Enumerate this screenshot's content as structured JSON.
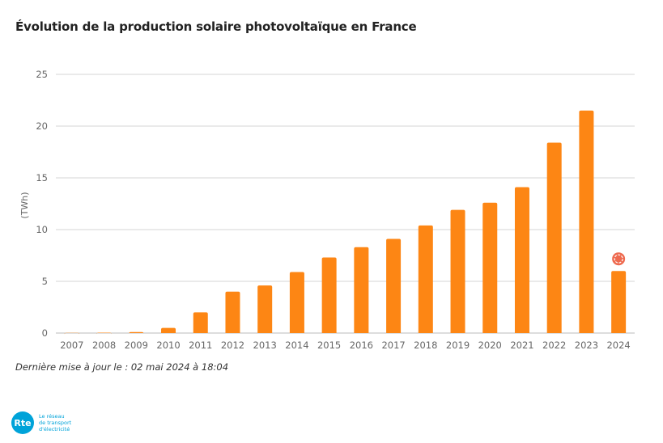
{
  "title": "Évolution de la production solaire photovoltaïque en France",
  "updated": "Dernière mise à jour le : 02 mai 2024 à 18:04",
  "logo": {
    "mark": "Rte",
    "lines": [
      "Le réseau",
      "de transport",
      "d'électricité"
    ]
  },
  "colors": {
    "bar": "#fd8614",
    "marker": "#ee6a4f",
    "grid": "#d6d6d6",
    "brand": "#00a3d9"
  },
  "chart_data": {
    "type": "bar",
    "title": "Évolution de la production solaire photovoltaïque en France",
    "ylabel": "(TWh)",
    "xlabel": "",
    "ylim": [
      0,
      25
    ],
    "yticks": [
      0,
      5,
      10,
      15,
      20,
      25
    ],
    "grid": true,
    "categories": [
      "2007",
      "2008",
      "2009",
      "2010",
      "2011",
      "2012",
      "2013",
      "2014",
      "2015",
      "2016",
      "2017",
      "2018",
      "2019",
      "2020",
      "2021",
      "2022",
      "2023",
      "2024"
    ],
    "values": [
      0.02,
      0.04,
      0.1,
      0.5,
      2.0,
      4.0,
      4.6,
      5.9,
      7.3,
      8.3,
      9.1,
      10.4,
      11.9,
      12.6,
      14.1,
      18.4,
      21.5,
      6.0
    ],
    "annotations": [
      {
        "category": "2024",
        "icon": "in-progress-marker-icon"
      }
    ]
  }
}
